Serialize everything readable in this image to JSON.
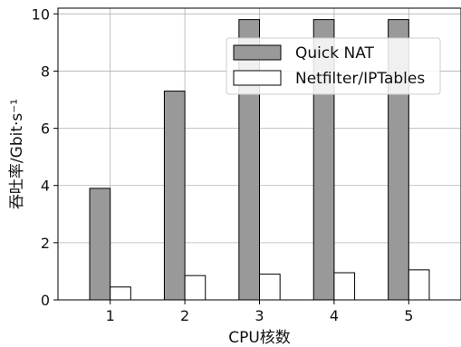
{
  "chart_data": {
    "type": "bar",
    "categories": [
      "1",
      "2",
      "3",
      "4",
      "5"
    ],
    "series": [
      {
        "name": "Quick NAT",
        "values": [
          3.9,
          7.3,
          9.8,
          9.8,
          9.8
        ],
        "color": "#999999"
      },
      {
        "name": "Netfilter/IPTables",
        "values": [
          0.45,
          0.85,
          0.9,
          0.95,
          1.05
        ],
        "color": "#ffffff"
      }
    ],
    "xlabel": "CPU核数",
    "ylabel": "吞吐率/Gbit·s⁻¹",
    "ylim": [
      0,
      10.2
    ],
    "yticks": [
      "0",
      "2",
      "4",
      "6",
      "8",
      "10"
    ],
    "grid": true,
    "legend": "top-right"
  }
}
